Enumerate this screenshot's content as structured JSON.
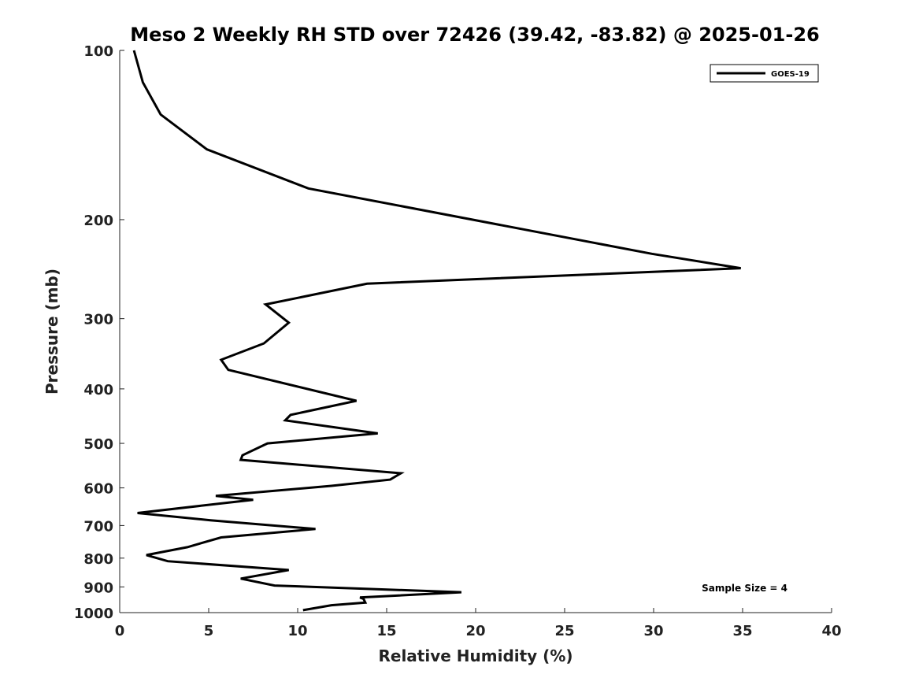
{
  "chart_data": {
    "type": "line",
    "title": "Meso 2 Weekly RH STD over 72426 (39.42, -83.82) @ 2025-01-26",
    "xlabel": "Relative Humidity (%)",
    "ylabel": "Pressure (mb)",
    "xlim": [
      0,
      40
    ],
    "ylim": [
      100,
      1000
    ],
    "yscale": "log",
    "y_inverted": true,
    "grid": false,
    "x_ticks": [
      0,
      5,
      10,
      15,
      20,
      25,
      30,
      35,
      40
    ],
    "x_tick_labels": [
      "0",
      "5",
      "10",
      "15",
      "20",
      "25",
      "30",
      "35",
      "40"
    ],
    "y_ticks": [
      100,
      200,
      300,
      400,
      500,
      600,
      700,
      800,
      900,
      1000
    ],
    "y_tick_labels": [
      "100",
      "200",
      "300",
      "400",
      "500",
      "600",
      "700",
      "800",
      "900",
      "1000"
    ],
    "legend": {
      "position": "top-right",
      "entries": [
        "GOES-19"
      ]
    },
    "annotations": [
      {
        "text": "Sample Size = 4",
        "position": "bottom-right"
      }
    ],
    "series": [
      {
        "name": "GOES-19",
        "color": "#000000",
        "x": [
          0.8,
          1.3,
          2.3,
          4.9,
          10.6,
          29.9,
          34.9,
          13.9,
          8.2,
          9.5,
          8.1,
          5.7,
          6.1,
          13.3,
          9.6,
          9.3,
          14.5,
          8.3,
          6.9,
          6.8,
          15.8,
          15.2,
          11.9,
          5.4,
          7.5,
          1.0,
          5.1,
          11.0,
          5.7,
          3.8,
          1.5,
          2.7,
          9.5,
          6.8,
          8.7,
          19.2,
          13.5,
          13.7,
          13.8,
          11.9,
          10.3
        ],
        "y": [
          100,
          114,
          130,
          150,
          176,
          230,
          244,
          260,
          283,
          305,
          332,
          355,
          370,
          420,
          445,
          455,
          480,
          500,
          525,
          535,
          565,
          580,
          595,
          620,
          630,
          665,
          685,
          710,
          735,
          765,
          790,
          810,
          840,
          870,
          895,
          920,
          940,
          945,
          960,
          970,
          990
        ]
      }
    ]
  }
}
